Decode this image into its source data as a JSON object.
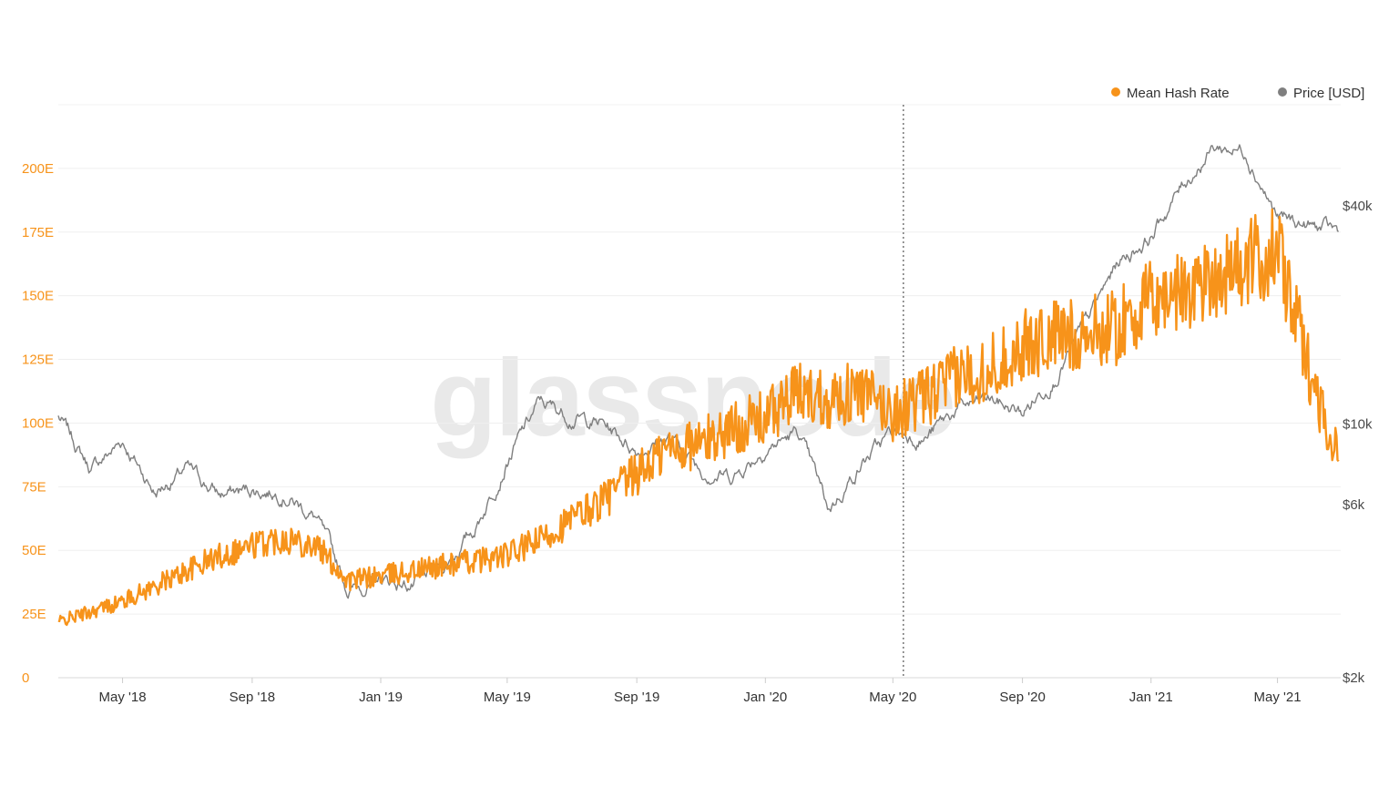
{
  "watermark": "glassnode",
  "legend": [
    {
      "label": "Mean Hash Rate",
      "color": "#f7931a"
    },
    {
      "label": "Price [USD]",
      "color": "#7f7f7f"
    }
  ],
  "chart_data": {
    "type": "line",
    "x_range": [
      "2018-03-01",
      "2021-06-30"
    ],
    "x_ticks": [
      "May '18",
      "Sep '18",
      "Jan '19",
      "May '19",
      "Sep '19",
      "Jan '20",
      "May '20",
      "Sep '20",
      "Jan '21",
      "May '21"
    ],
    "x_tick_dates": [
      "2018-05-01",
      "2018-09-01",
      "2019-01-01",
      "2019-05-01",
      "2019-09-01",
      "2020-01-01",
      "2020-05-01",
      "2020-09-01",
      "2021-01-01",
      "2021-05-01"
    ],
    "y_left": {
      "ticks": [
        "0",
        "25E",
        "50E",
        "75E",
        "100E",
        "125E",
        "150E",
        "175E",
        "200E"
      ],
      "tick_values": [
        0,
        25,
        50,
        75,
        100,
        125,
        150,
        175,
        200
      ],
      "range": [
        0,
        225
      ]
    },
    "y_right": {
      "scale": "log",
      "ticks": [
        "$2k",
        "$6k",
        "$10k",
        "$40k"
      ],
      "tick_values": [
        2000,
        6000,
        10000,
        40000
      ]
    },
    "vertical_marker_date": "2020-05-11",
    "series": [
      {
        "name": "Mean Hash Rate",
        "axis": "left",
        "color": "#f7931a",
        "points": [
          [
            "2018-03-01",
            22
          ],
          [
            "2018-04-01",
            26
          ],
          [
            "2018-05-01",
            30
          ],
          [
            "2018-06-01",
            36
          ],
          [
            "2018-07-01",
            42
          ],
          [
            "2018-08-01",
            48
          ],
          [
            "2018-09-01",
            52
          ],
          [
            "2018-10-01",
            55
          ],
          [
            "2018-11-01",
            52
          ],
          [
            "2018-12-01",
            38
          ],
          [
            "2019-01-01",
            40
          ],
          [
            "2019-02-01",
            42
          ],
          [
            "2019-03-01",
            44
          ],
          [
            "2019-04-01",
            46
          ],
          [
            "2019-05-01",
            48
          ],
          [
            "2019-06-01",
            54
          ],
          [
            "2019-07-01",
            62
          ],
          [
            "2019-08-01",
            70
          ],
          [
            "2019-09-01",
            80
          ],
          [
            "2019-10-01",
            90
          ],
          [
            "2019-11-01",
            92
          ],
          [
            "2019-12-01",
            98
          ],
          [
            "2020-01-01",
            102
          ],
          [
            "2020-02-01",
            112
          ],
          [
            "2020-03-01",
            110
          ],
          [
            "2020-04-01",
            112
          ],
          [
            "2020-05-01",
            104
          ],
          [
            "2020-06-01",
            110
          ],
          [
            "2020-07-01",
            118
          ],
          [
            "2020-08-01",
            122
          ],
          [
            "2020-09-01",
            130
          ],
          [
            "2020-10-01",
            134
          ],
          [
            "2020-11-01",
            135
          ],
          [
            "2020-12-01",
            138
          ],
          [
            "2021-01-01",
            148
          ],
          [
            "2021-02-01",
            152
          ],
          [
            "2021-03-01",
            158
          ],
          [
            "2021-04-01",
            162
          ],
          [
            "2021-05-01",
            168
          ],
          [
            "2021-06-01",
            120
          ],
          [
            "2021-06-28",
            85
          ]
        ]
      },
      {
        "name": "Price [USD]",
        "axis": "right",
        "color": "#7f7f7f",
        "points": [
          [
            "2018-03-01",
            10500
          ],
          [
            "2018-04-01",
            7500
          ],
          [
            "2018-05-01",
            9000
          ],
          [
            "2018-06-01",
            6500
          ],
          [
            "2018-07-01",
            7500
          ],
          [
            "2018-08-01",
            6400
          ],
          [
            "2018-09-01",
            6600
          ],
          [
            "2018-10-01",
            6500
          ],
          [
            "2018-11-01",
            5500
          ],
          [
            "2018-12-01",
            3500
          ],
          [
            "2019-01-01",
            3700
          ],
          [
            "2019-02-01",
            3600
          ],
          [
            "2019-03-01",
            4000
          ],
          [
            "2019-04-01",
            5200
          ],
          [
            "2019-05-01",
            8000
          ],
          [
            "2019-06-01",
            11500
          ],
          [
            "2019-07-01",
            10500
          ],
          [
            "2019-08-01",
            10000
          ],
          [
            "2019-09-01",
            8500
          ],
          [
            "2019-10-01",
            9200
          ],
          [
            "2019-11-01",
            7500
          ],
          [
            "2019-12-01",
            7200
          ],
          [
            "2020-01-01",
            8600
          ],
          [
            "2020-02-01",
            9500
          ],
          [
            "2020-03-01",
            5800
          ],
          [
            "2020-04-01",
            7800
          ],
          [
            "2020-05-01",
            9500
          ],
          [
            "2020-06-01",
            9200
          ],
          [
            "2020-07-01",
            11000
          ],
          [
            "2020-08-01",
            11700
          ],
          [
            "2020-09-01",
            10700
          ],
          [
            "2020-10-01",
            13500
          ],
          [
            "2020-11-01",
            19000
          ],
          [
            "2020-12-01",
            28000
          ],
          [
            "2021-01-01",
            33000
          ],
          [
            "2021-02-01",
            46000
          ],
          [
            "2021-03-01",
            58000
          ],
          [
            "2021-04-01",
            57000
          ],
          [
            "2021-05-01",
            37000
          ],
          [
            "2021-06-01",
            35000
          ],
          [
            "2021-06-28",
            34000
          ]
        ]
      }
    ]
  }
}
